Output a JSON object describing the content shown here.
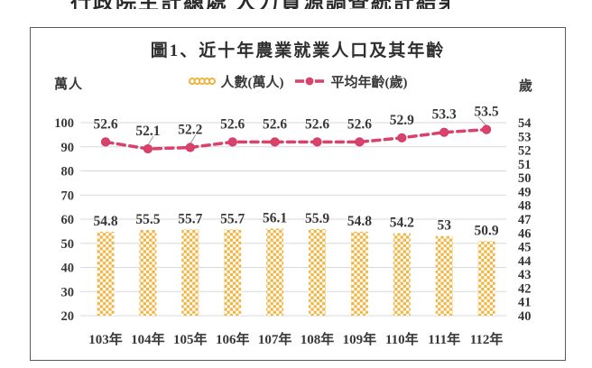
{
  "page": {
    "bg": "#ffffff"
  },
  "top_clipped_text": "行政院主計總處 人力資源調查統計結果 提要分析",
  "chart": {
    "title": "圖1、近十年農業就業人口及其年齡",
    "left_unit": "萬人",
    "right_unit": "歲",
    "legend": {
      "bar_label": "人數(萬人)",
      "line_label": "平均年齡(歲)"
    },
    "colors": {
      "bar": "#EFB441",
      "line": "#D9426B",
      "marker": "#D43A62",
      "grid": "#D9D9D9",
      "text": "#383838",
      "border": "#595959",
      "leader": "#9A9A9A"
    }
  },
  "chart_data": {
    "type": "combo",
    "title": "圖1、近十年農業就業人口及其年齡",
    "categories": [
      "103年",
      "104年",
      "105年",
      "106年",
      "107年",
      "108年",
      "109年",
      "110年",
      "111年",
      "112年"
    ],
    "series": [
      {
        "name": "人數(萬人)",
        "type": "bar",
        "axis": "left",
        "values": [
          54.8,
          55.5,
          55.7,
          55.7,
          56.1,
          55.9,
          54.8,
          54.2,
          53,
          50.9
        ],
        "labels": [
          "54.8",
          "55.5",
          "55.7",
          "55.7",
          "56.1",
          "55.9",
          "54.8",
          "54.2",
          "53",
          "50.9"
        ]
      },
      {
        "name": "平均年齡(歲)",
        "type": "line",
        "axis": "right",
        "values": [
          52.6,
          52.1,
          52.2,
          52.6,
          52.6,
          52.6,
          52.6,
          52.9,
          53.3,
          53.5
        ],
        "labels": [
          "52.6",
          "52.1",
          "52.2",
          "52.6",
          "52.6",
          "52.6",
          "52.6",
          "52.9",
          "53.3",
          "53.5"
        ],
        "leader_label_indices": [
          1,
          2,
          9
        ]
      }
    ],
    "left_axis": {
      "label": "萬人",
      "ticks": [
        100,
        90,
        80,
        70,
        60,
        50,
        40,
        30,
        20
      ],
      "min": 20,
      "max": 100
    },
    "right_axis": {
      "label": "歲",
      "ticks": [
        54,
        53,
        52,
        51,
        50,
        49,
        48,
        47,
        46,
        45,
        44,
        43,
        42,
        41,
        40
      ],
      "min": 40,
      "max": 54
    },
    "grid": true,
    "legend_position": "top"
  }
}
